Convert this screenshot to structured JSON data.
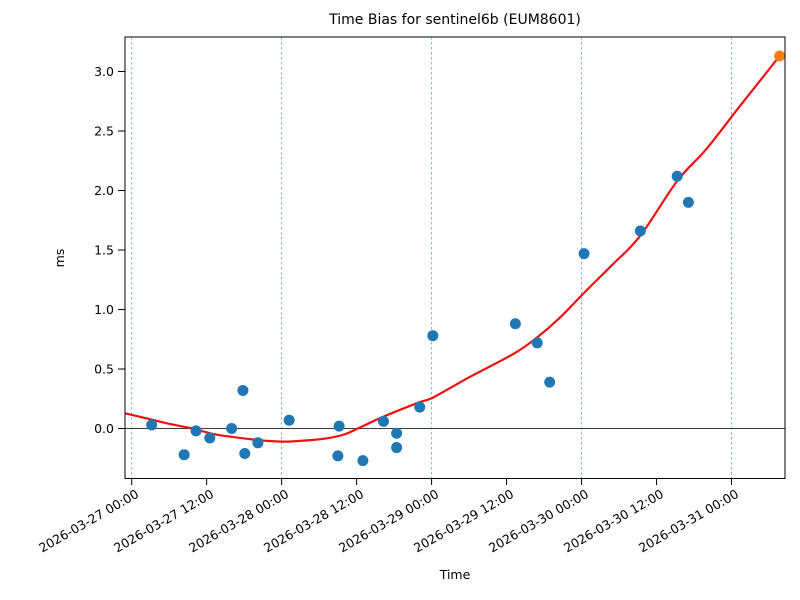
{
  "window": {
    "background": "#ffffff"
  },
  "chart_data": {
    "type": "scatter",
    "title": "Time Bias for sentinel6b (EUM8601)",
    "xlabel": "Time",
    "ylabel": "ms",
    "xlim_hours": [
      -1.07,
      104.56
    ],
    "ylim": [
      -0.42,
      3.29
    ],
    "x_ticks": {
      "hours": [
        0,
        12,
        24,
        36,
        48,
        60,
        72,
        84,
        96
      ],
      "labels": [
        "2026-03-27 00:00",
        "2026-03-27 12:00",
        "2026-03-28 00:00",
        "2026-03-28 12:00",
        "2026-03-29 00:00",
        "2026-03-29 12:00",
        "2026-03-30 00:00",
        "2026-03-30 12:00",
        "2026-03-31 00:00"
      ],
      "rotation_deg": 30
    },
    "y_ticks": {
      "values": [
        0.0,
        0.5,
        1.0,
        1.5,
        2.0,
        2.5,
        3.0
      ],
      "labels": [
        "0.0",
        "0.5",
        "1.0",
        "1.5",
        "2.0",
        "2.5",
        "3.0"
      ]
    },
    "grid": {
      "vertical_dashed_at_hours": [
        0,
        24,
        48,
        72,
        96
      ],
      "horizontal_zero_line": 0.0
    },
    "colors": {
      "scatter": "#1f77b4",
      "latest": "#ff7f0e",
      "fit": "#ee1111",
      "gridline": "#74a9d4",
      "zero_line": "#3a3a3a",
      "spine": "#000000"
    },
    "series": [
      {
        "name": "bias-measurements",
        "type": "scatter",
        "color": "#1f77b4",
        "points": [
          {
            "time": "2026-03-27 03:10",
            "hours": 3.2,
            "ms": 0.03
          },
          {
            "time": "2026-03-27 08:25",
            "hours": 8.4,
            "ms": -0.22
          },
          {
            "time": "2026-03-27 10:20",
            "hours": 10.3,
            "ms": -0.02
          },
          {
            "time": "2026-03-27 12:30",
            "hours": 12.5,
            "ms": -0.08
          },
          {
            "time": "2026-03-27 16:00",
            "hours": 16.0,
            "ms": 0.0
          },
          {
            "time": "2026-03-27 17:50",
            "hours": 17.8,
            "ms": 0.32
          },
          {
            "time": "2026-03-27 18:05",
            "hours": 18.1,
            "ms": -0.21
          },
          {
            "time": "2026-03-27 20:10",
            "hours": 20.2,
            "ms": -0.12
          },
          {
            "time": "2026-03-28 01:10",
            "hours": 25.2,
            "ms": 0.07
          },
          {
            "time": "2026-03-28 09:00",
            "hours": 33.0,
            "ms": -0.23
          },
          {
            "time": "2026-03-28 09:10",
            "hours": 33.2,
            "ms": 0.02
          },
          {
            "time": "2026-03-28 13:00",
            "hours": 37.0,
            "ms": -0.27
          },
          {
            "time": "2026-03-28 16:20",
            "hours": 40.3,
            "ms": 0.06
          },
          {
            "time": "2026-03-28 18:25",
            "hours": 42.4,
            "ms": -0.04
          },
          {
            "time": "2026-03-28 18:25",
            "hours": 42.4,
            "ms": -0.16
          },
          {
            "time": "2026-03-28 22:05",
            "hours": 46.1,
            "ms": 0.18
          },
          {
            "time": "2026-03-29 00:10",
            "hours": 48.2,
            "ms": 0.78
          },
          {
            "time": "2026-03-29 13:25",
            "hours": 61.4,
            "ms": 0.88
          },
          {
            "time": "2026-03-29 16:55",
            "hours": 64.9,
            "ms": 0.72
          },
          {
            "time": "2026-03-29 18:55",
            "hours": 66.9,
            "ms": 0.39
          },
          {
            "time": "2026-03-30 00:25",
            "hours": 72.4,
            "ms": 1.47
          },
          {
            "time": "2026-03-30 09:25",
            "hours": 81.4,
            "ms": 1.66
          },
          {
            "time": "2026-03-30 15:20",
            "hours": 87.3,
            "ms": 2.12
          },
          {
            "time": "2026-03-30 17:05",
            "hours": 89.1,
            "ms": 1.9
          }
        ]
      },
      {
        "name": "latest-measurement",
        "type": "scatter",
        "color": "#ff7f0e",
        "points": [
          {
            "time": "2026-03-31 07:40",
            "hours": 103.7,
            "ms": 3.13
          }
        ]
      },
      {
        "name": "polynomial-fit",
        "type": "line",
        "color": "#ee1111",
        "samples": [
          [
            -1.3,
            0.13
          ],
          [
            2,
            0.09
          ],
          [
            6,
            0.04
          ],
          [
            9.7,
            0.0
          ],
          [
            13,
            -0.045
          ],
          [
            16,
            -0.07
          ],
          [
            19,
            -0.09
          ],
          [
            22,
            -0.105
          ],
          [
            25,
            -0.11
          ],
          [
            28,
            -0.1
          ],
          [
            31,
            -0.085
          ],
          [
            34,
            -0.05
          ],
          [
            36.2,
            0.0
          ],
          [
            40.3,
            0.1
          ],
          [
            46,
            0.22
          ],
          [
            48.2,
            0.26
          ],
          [
            54,
            0.43
          ],
          [
            61.2,
            0.63
          ],
          [
            65,
            0.77
          ],
          [
            68.5,
            0.93
          ],
          [
            72.4,
            1.14
          ],
          [
            77,
            1.38
          ],
          [
            81.4,
            1.62
          ],
          [
            87.3,
            2.08
          ],
          [
            92,
            2.35
          ],
          [
            97.5,
            2.72
          ],
          [
            103.7,
            3.13
          ]
        ]
      }
    ]
  }
}
